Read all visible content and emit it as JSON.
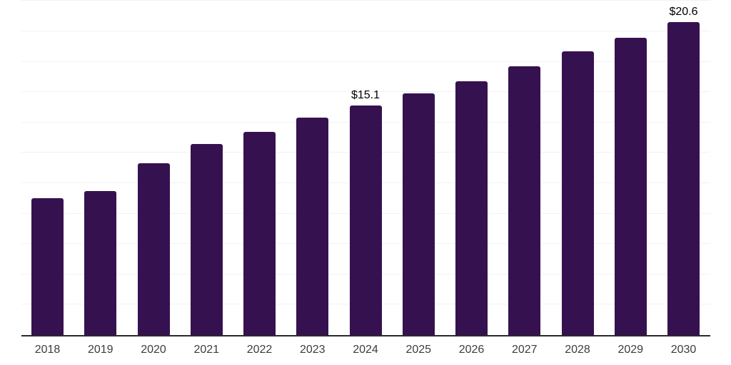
{
  "chart_data": {
    "type": "bar",
    "title": "",
    "xlabel": "",
    "ylabel": "",
    "categories": [
      "2018",
      "2019",
      "2020",
      "2021",
      "2022",
      "2023",
      "2024",
      "2025",
      "2026",
      "2027",
      "2028",
      "2029",
      "2030"
    ],
    "values": [
      9.0,
      9.5,
      11.3,
      12.6,
      13.4,
      14.3,
      15.1,
      15.9,
      16.7,
      17.7,
      18.7,
      19.6,
      20.6
    ],
    "data_labels": [
      "",
      "",
      "",
      "",
      "",
      "",
      "$15.1",
      "",
      "",
      "",
      "",
      "",
      "$20.6"
    ],
    "ylim": [
      0,
      22
    ],
    "gridline_step": 2,
    "grid": true,
    "legend": "none",
    "y_axis_tick_labels_visible": false,
    "colors": {
      "bar": "#361150",
      "axis": "#2a2a2a",
      "gridline": "#f2f2f4",
      "data_label": "#000000",
      "tick_label": "#3c3c3c"
    }
  }
}
